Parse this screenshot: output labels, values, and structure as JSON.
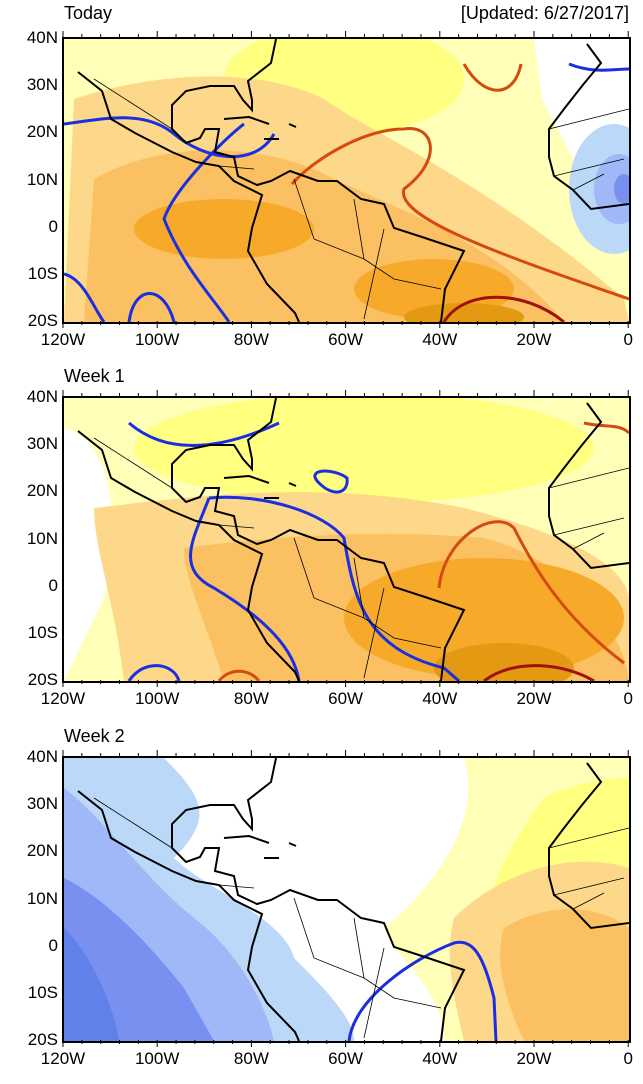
{
  "header": {
    "updated": "[Updated: 6/27/2017]"
  },
  "panels": [
    {
      "title": "Today"
    },
    {
      "title": "Week 1"
    },
    {
      "title": "Week 2"
    }
  ],
  "axes": {
    "lat_labels": [
      "40N",
      "30N",
      "20N",
      "10N",
      "0",
      "10S",
      "20S"
    ],
    "lon_labels": [
      "120W",
      "100W",
      "80W",
      "60W",
      "40W",
      "20W",
      "0"
    ]
  },
  "colors": {
    "contour_blue": "#1a2fe0",
    "contour_red": "#d44a10",
    "contour_darkred": "#a01010"
  }
}
